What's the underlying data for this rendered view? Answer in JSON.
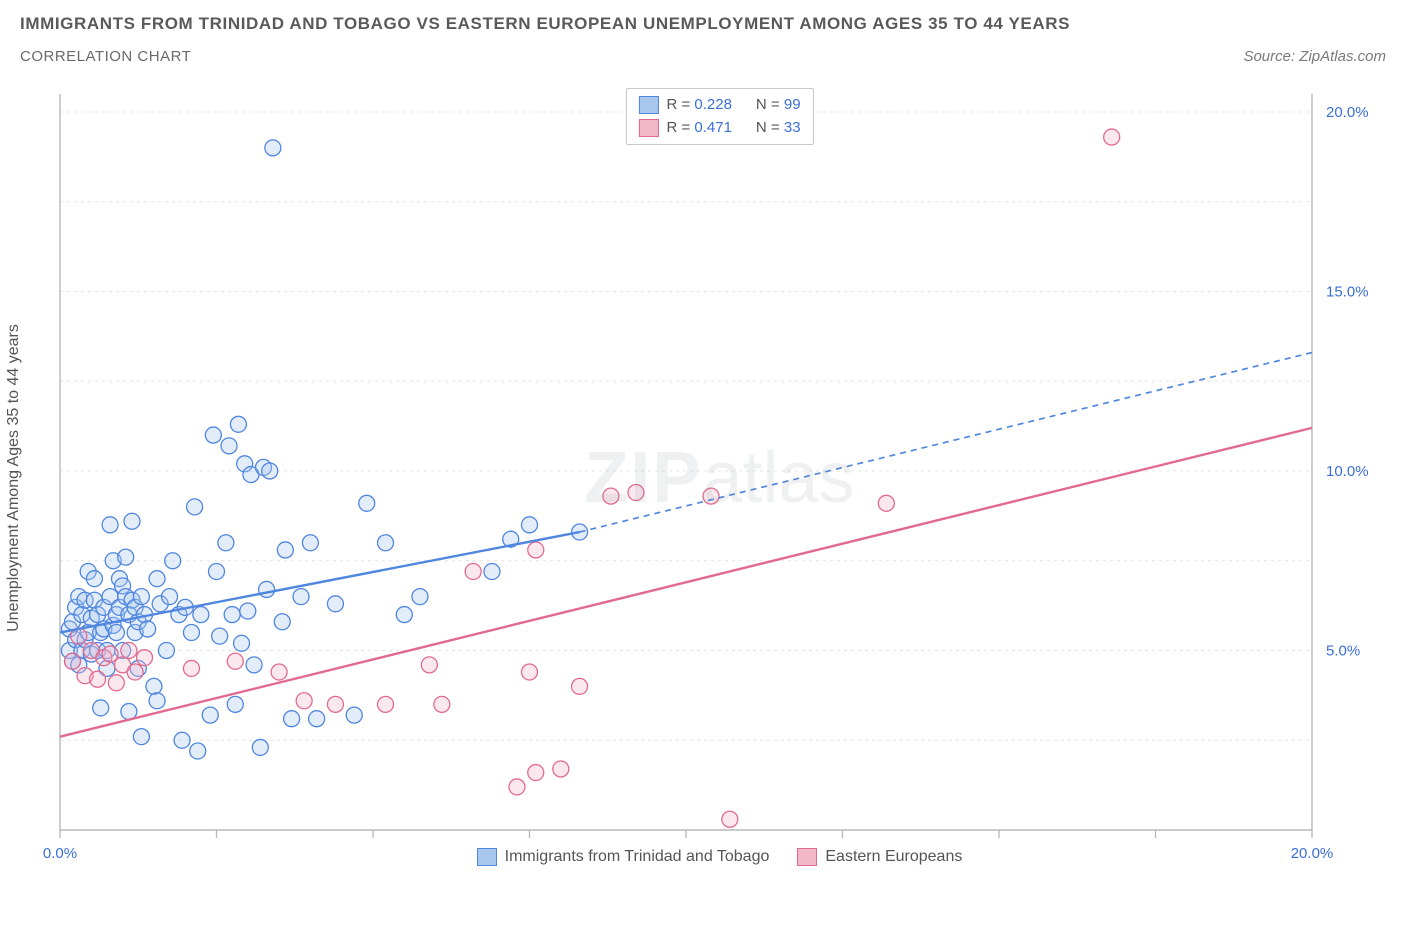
{
  "header": {
    "title": "IMMIGRANTS FROM TRINIDAD AND TOBAGO VS EASTERN EUROPEAN UNEMPLOYMENT AMONG AGES 35 TO 44 YEARS",
    "subtitle": "CORRELATION CHART",
    "source": "Source: ZipAtlas.com"
  },
  "chart": {
    "type": "scatter",
    "watermark_main": "ZIP",
    "watermark_sub": "atlas",
    "y_axis_label": "Unemployment Among Ages 35 to 44 years",
    "xlim": [
      0,
      20
    ],
    "ylim": [
      0,
      20.5
    ],
    "x_ticks": [
      0,
      2.5,
      5,
      7.5,
      10,
      12.5,
      15,
      17.5,
      20
    ],
    "x_tick_labels_shown": {
      "0": "0.0%",
      "20": "20.0%"
    },
    "y_ticks": [
      5,
      10,
      15,
      20
    ],
    "y_tick_labels": {
      "5": "5.0%",
      "10": "10.0%",
      "15": "15.0%",
      "20": "20.0%"
    },
    "grid_y": [
      2.5,
      5,
      7.5,
      10,
      12.5,
      15,
      17.5,
      20
    ],
    "grid_color": "#e4e4e4",
    "axis_color": "#b8b8b8",
    "tick_label_color": "#3b6fd6",
    "background_color": "#ffffff",
    "point_radius": 8,
    "point_stroke_width": 1.3,
    "point_fill_opacity": 0.32,
    "series": [
      {
        "name": "Immigrants from Trinidad and Tobago",
        "key": "trinidad",
        "color": "#4f86e0",
        "fill": "#a9c6ef",
        "R": "0.228",
        "N": "99",
        "trend": {
          "x1": 0.0,
          "y1": 5.5,
          "x2": 8.3,
          "y2": 8.3,
          "x3": 20.0,
          "y3": 13.3,
          "solid_until_x": 8.3,
          "width": 2.4,
          "dash": "6,5"
        },
        "points": [
          [
            0.15,
            5.0
          ],
          [
            0.15,
            5.6
          ],
          [
            0.2,
            4.7
          ],
          [
            0.2,
            5.8
          ],
          [
            0.25,
            5.3
          ],
          [
            0.25,
            6.2
          ],
          [
            0.3,
            4.6
          ],
          [
            0.3,
            6.5
          ],
          [
            0.35,
            5.0
          ],
          [
            0.35,
            6.0
          ],
          [
            0.4,
            5.3
          ],
          [
            0.4,
            6.4
          ],
          [
            0.45,
            5.5
          ],
          [
            0.45,
            7.2
          ],
          [
            0.5,
            4.9
          ],
          [
            0.5,
            5.9
          ],
          [
            0.55,
            6.4
          ],
          [
            0.55,
            7.0
          ],
          [
            0.6,
            5.0
          ],
          [
            0.6,
            6.0
          ],
          [
            0.65,
            3.4
          ],
          [
            0.65,
            5.5
          ],
          [
            0.7,
            5.6
          ],
          [
            0.7,
            6.2
          ],
          [
            0.75,
            4.5
          ],
          [
            0.75,
            5.0
          ],
          [
            0.8,
            6.5
          ],
          [
            0.8,
            8.5
          ],
          [
            0.85,
            5.7
          ],
          [
            0.85,
            7.5
          ],
          [
            0.9,
            5.5
          ],
          [
            0.9,
            6.0
          ],
          [
            0.95,
            6.2
          ],
          [
            0.95,
            7.0
          ],
          [
            1.0,
            5.0
          ],
          [
            1.0,
            6.8
          ],
          [
            1.05,
            6.5
          ],
          [
            1.05,
            7.6
          ],
          [
            1.1,
            6.0
          ],
          [
            1.1,
            3.3
          ],
          [
            1.15,
            8.6
          ],
          [
            1.15,
            6.4
          ],
          [
            1.2,
            5.5
          ],
          [
            1.2,
            6.2
          ],
          [
            1.25,
            5.8
          ],
          [
            1.25,
            4.5
          ],
          [
            1.3,
            6.5
          ],
          [
            1.3,
            2.6
          ],
          [
            1.35,
            6.0
          ],
          [
            1.4,
            5.6
          ],
          [
            1.5,
            4.0
          ],
          [
            1.55,
            7.0
          ],
          [
            1.6,
            6.3
          ],
          [
            1.7,
            5.0
          ],
          [
            1.75,
            6.5
          ],
          [
            1.8,
            7.5
          ],
          [
            1.9,
            6.0
          ],
          [
            1.95,
            2.5
          ],
          [
            2.0,
            6.2
          ],
          [
            2.1,
            5.5
          ],
          [
            2.15,
            9.0
          ],
          [
            2.2,
            2.2
          ],
          [
            2.25,
            6.0
          ],
          [
            2.4,
            3.2
          ],
          [
            2.45,
            11.0
          ],
          [
            2.5,
            7.2
          ],
          [
            2.55,
            5.4
          ],
          [
            2.65,
            8.0
          ],
          [
            2.7,
            10.7
          ],
          [
            2.75,
            6.0
          ],
          [
            2.85,
            11.3
          ],
          [
            2.9,
            5.2
          ],
          [
            2.95,
            10.2
          ],
          [
            3.0,
            6.1
          ],
          [
            3.05,
            9.9
          ],
          [
            3.1,
            4.6
          ],
          [
            3.2,
            2.3
          ],
          [
            3.25,
            10.1
          ],
          [
            3.3,
            6.7
          ],
          [
            3.35,
            10.0
          ],
          [
            3.4,
            19.0
          ],
          [
            3.55,
            5.8
          ],
          [
            3.6,
            7.8
          ],
          [
            3.7,
            3.1
          ],
          [
            3.85,
            6.5
          ],
          [
            4.0,
            8.0
          ],
          [
            4.1,
            3.1
          ],
          [
            4.4,
            6.3
          ],
          [
            4.7,
            3.2
          ],
          [
            4.9,
            9.1
          ],
          [
            5.2,
            8.0
          ],
          [
            5.5,
            6.0
          ],
          [
            5.75,
            6.5
          ],
          [
            6.9,
            7.2
          ],
          [
            7.2,
            8.1
          ],
          [
            7.5,
            8.5
          ],
          [
            8.3,
            8.3
          ],
          [
            1.55,
            3.6
          ],
          [
            2.8,
            3.5
          ]
        ]
      },
      {
        "name": "Eastern Europeans",
        "key": "eastern",
        "color": "#e26a8f",
        "fill": "#f2b7c9",
        "R": "0.471",
        "N": "33",
        "trend": {
          "x1": 0.0,
          "y1": 2.6,
          "x2": 20.0,
          "y2": 11.2,
          "solid_until_x": 20.0,
          "width": 2.4
        },
        "points": [
          [
            0.2,
            4.7
          ],
          [
            0.3,
            5.4
          ],
          [
            0.4,
            4.3
          ],
          [
            0.5,
            5.0
          ],
          [
            0.6,
            4.2
          ],
          [
            0.7,
            4.8
          ],
          [
            0.8,
            4.9
          ],
          [
            0.9,
            4.1
          ],
          [
            1.0,
            4.6
          ],
          [
            1.1,
            5.0
          ],
          [
            1.2,
            4.4
          ],
          [
            1.35,
            4.8
          ],
          [
            2.1,
            4.5
          ],
          [
            2.8,
            4.7
          ],
          [
            3.5,
            4.4
          ],
          [
            3.9,
            3.6
          ],
          [
            4.4,
            3.5
          ],
          [
            5.2,
            3.5
          ],
          [
            5.9,
            4.6
          ],
          [
            6.1,
            3.5
          ],
          [
            6.6,
            7.2
          ],
          [
            7.3,
            1.2
          ],
          [
            7.5,
            4.4
          ],
          [
            7.6,
            7.8
          ],
          [
            7.6,
            1.6
          ],
          [
            8.0,
            1.7
          ],
          [
            8.3,
            4.0
          ],
          [
            8.8,
            9.3
          ],
          [
            9.2,
            9.4
          ],
          [
            10.4,
            9.3
          ],
          [
            10.7,
            0.3
          ],
          [
            13.2,
            9.1
          ],
          [
            16.8,
            19.3
          ]
        ]
      }
    ]
  },
  "x_legend": {
    "s1": "Immigrants from Trinidad and Tobago",
    "s2": "Eastern Europeans"
  }
}
